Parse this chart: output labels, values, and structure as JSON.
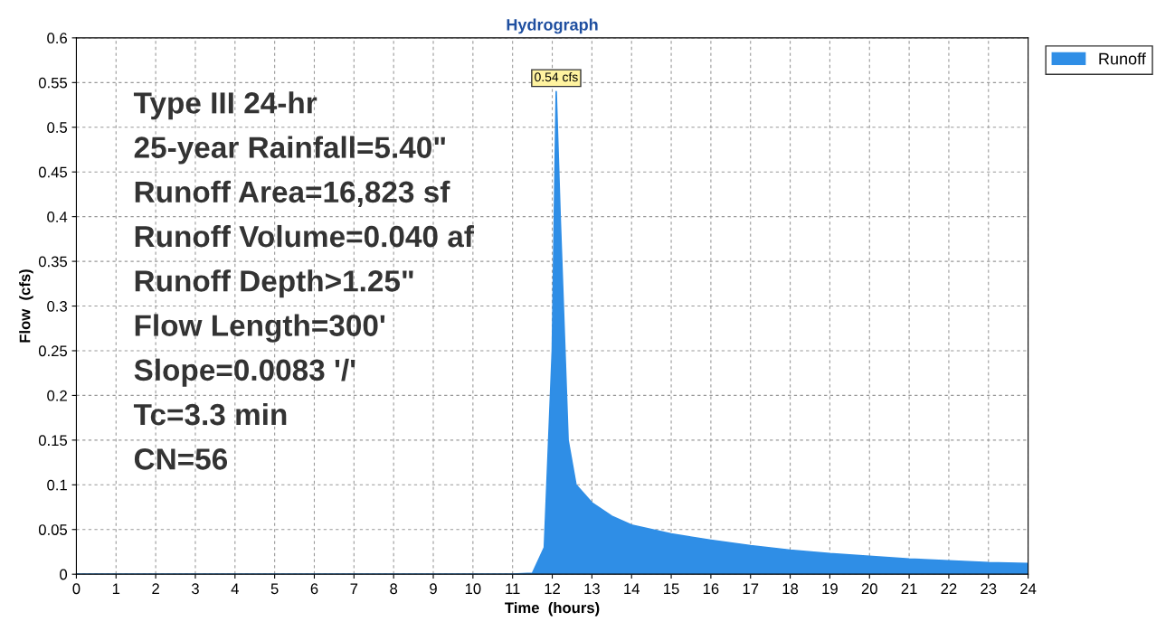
{
  "chart_data": {
    "type": "area",
    "title": "Hydrograph",
    "xlabel": "Time  (hours)",
    "ylabel": "Flow  (cfs)",
    "x": [
      0,
      11,
      11.5,
      11.8,
      12.0,
      12.1,
      12.2,
      12.4,
      12.6,
      13,
      13.5,
      14,
      15,
      16,
      17,
      18,
      19,
      20,
      21,
      22,
      23,
      24
    ],
    "series": [
      {
        "name": "Runoff",
        "color": "#2f8ee6",
        "values": [
          0,
          0,
          0.001,
          0.03,
          0.25,
          0.54,
          0.4,
          0.15,
          0.1,
          0.08,
          0.065,
          0.055,
          0.045,
          0.038,
          0.032,
          0.027,
          0.023,
          0.02,
          0.017,
          0.015,
          0.013,
          0.012
        ]
      }
    ],
    "xlim": [
      0,
      24
    ],
    "xticks": [
      0,
      1,
      2,
      3,
      4,
      5,
      6,
      7,
      8,
      9,
      10,
      11,
      12,
      13,
      14,
      15,
      16,
      17,
      18,
      19,
      20,
      21,
      22,
      23,
      24
    ],
    "ylim": [
      0,
      0.6
    ],
    "yticks": [
      0,
      0.05,
      0.1,
      0.15,
      0.2,
      0.25,
      0.3,
      0.35,
      0.4,
      0.45,
      0.5,
      0.55,
      0.6
    ],
    "grid": true,
    "legend": "top right",
    "annotations": [
      {
        "text": "0.54 cfs",
        "x": 12.1,
        "y": 0.54
      },
      "Type III 24-hr",
      "25-year Rainfall=5.40\"",
      "Runoff Area=16,823 sf",
      "Runoff Volume=0.040 af",
      "Runoff Depth>1.25\"",
      "Flow Length=300'",
      "Slope=0.0083 '/'",
      "Tc=3.3 min",
      "CN=56"
    ]
  }
}
